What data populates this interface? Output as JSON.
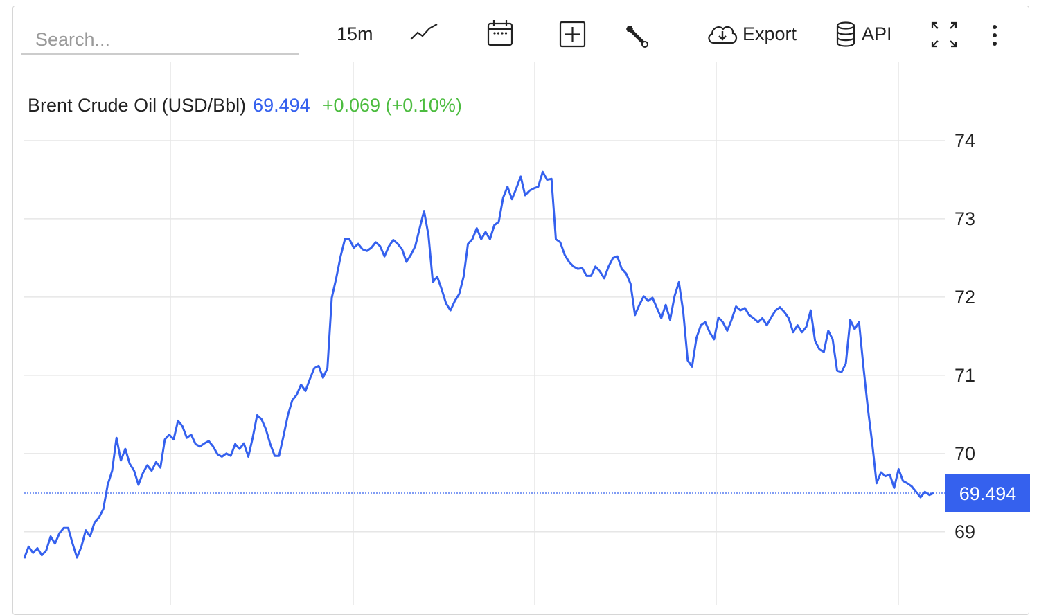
{
  "toolbar": {
    "search_placeholder": "Search...",
    "interval": "15m",
    "export": "Export",
    "api": "API"
  },
  "chart_data": {
    "type": "line",
    "title": "Brent Crude Oil (USD/Bbl)",
    "price": 69.494,
    "change": "+0.069 (+0.10%)",
    "series": [
      {
        "name": "Brent Crude Oil (USD/Bbl)",
        "color": "#3561ee",
        "values": [
          68.66,
          68.81,
          68.73,
          68.79,
          68.7,
          68.76,
          68.94,
          68.85,
          68.98,
          69.05,
          69.05,
          68.85,
          68.67,
          68.81,
          69.02,
          68.94,
          69.12,
          69.18,
          69.29,
          69.6,
          69.78,
          70.2,
          69.91,
          70.06,
          69.87,
          69.78,
          69.6,
          69.75,
          69.85,
          69.78,
          69.89,
          69.82,
          70.18,
          70.24,
          70.18,
          70.42,
          70.35,
          70.2,
          70.24,
          70.12,
          70.09,
          70.13,
          70.16,
          70.09,
          69.99,
          69.96,
          70.0,
          69.97,
          70.12,
          70.06,
          70.13,
          69.96,
          70.2,
          70.49,
          70.44,
          70.31,
          70.12,
          69.97,
          69.97,
          70.22,
          70.49,
          70.68,
          70.75,
          70.88,
          70.8,
          70.95,
          71.09,
          71.12,
          70.97,
          71.09,
          71.99,
          72.24,
          72.52,
          72.74,
          72.74,
          72.63,
          72.68,
          72.61,
          72.59,
          72.63,
          72.7,
          72.65,
          72.52,
          72.65,
          72.73,
          72.68,
          72.61,
          72.45,
          72.54,
          72.65,
          72.88,
          73.1,
          72.79,
          72.19,
          72.26,
          72.1,
          71.92,
          71.83,
          71.95,
          72.04,
          72.26,
          72.68,
          72.74,
          72.88,
          72.74,
          72.83,
          72.74,
          72.92,
          72.96,
          73.27,
          73.41,
          73.25,
          73.39,
          73.54,
          73.3,
          73.36,
          73.39,
          73.41,
          73.6,
          73.5,
          73.51,
          72.74,
          72.7,
          72.54,
          72.45,
          72.39,
          72.36,
          72.37,
          72.27,
          72.27,
          72.39,
          72.33,
          72.24,
          72.39,
          72.5,
          72.52,
          72.36,
          72.3,
          72.17,
          71.77,
          71.9,
          72.01,
          71.95,
          71.99,
          71.86,
          71.73,
          71.9,
          71.71,
          72.01,
          72.19,
          71.81,
          71.19,
          71.11,
          71.48,
          71.64,
          71.68,
          71.55,
          71.46,
          71.74,
          71.68,
          71.57,
          71.71,
          71.88,
          71.83,
          71.86,
          71.77,
          71.73,
          71.68,
          71.73,
          71.64,
          71.74,
          71.83,
          71.87,
          71.81,
          71.73,
          71.55,
          71.64,
          71.55,
          71.62,
          71.83,
          71.44,
          71.33,
          71.3,
          71.57,
          71.46,
          71.06,
          71.04,
          71.15,
          71.71,
          71.59,
          71.68,
          71.11,
          70.58,
          70.13,
          69.62,
          69.76,
          69.71,
          69.73,
          69.56,
          69.8,
          69.65,
          69.62,
          69.58,
          69.51,
          69.44,
          69.51,
          69.47,
          69.494
        ]
      }
    ],
    "ylim": [
      68.06,
      75.0
    ],
    "yticks": [
      69,
      70,
      71,
      72,
      73,
      74
    ],
    "grid": true
  }
}
